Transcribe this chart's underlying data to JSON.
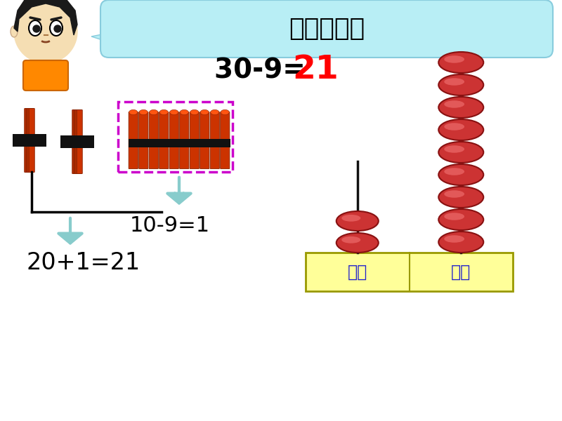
{
  "bg_color": "#FFFFFF",
  "title_box_color": "#B8EEF5",
  "title_text": "请你试一试",
  "title_fontsize": 26,
  "equation_part1": "30-9= ",
  "equation_part2": "21",
  "equation_fontsize": 28,
  "answer_color": "#FF0000",
  "sub_equation": "10-9=1",
  "final_equation": "20+1=21",
  "label_tens": "十位",
  "label_ones": "个位",
  "label_color": "#2222CC",
  "abacus_box_color": "#FFFF99",
  "abacus_box_edge": "#999900",
  "bead_color": "#CC3333",
  "bead_edge": "#881111",
  "arrow_color": "#88CCCC",
  "line_color": "#000000",
  "dashed_color": "#CC00CC"
}
